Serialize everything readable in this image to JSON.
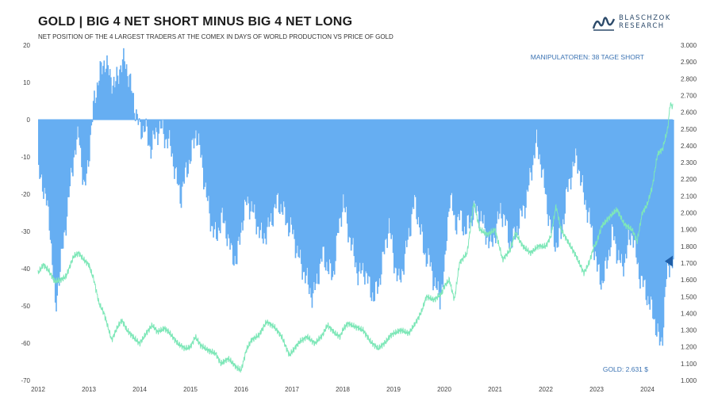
{
  "header": {
    "title": "GOLD | BIG 4 NET SHORT MINUS BIG 4 NET LONG",
    "subtitle": "NET POSITION OF THE 4 LARGEST TRADERS AT THE COMEX IN DAYS OF WORLD PRODUCTION VS PRICE OF GOLD"
  },
  "logo": {
    "line1": "BLASCHZOK",
    "line2": "RESEARCH",
    "icon": "wave-logo-icon"
  },
  "colors": {
    "bars": "#66aef2",
    "gold_line": "#7ee7b8",
    "annotation": "#3b73b3",
    "marker": "#1f5fa8",
    "axis_text": "#444444"
  },
  "annotations": {
    "manipulators": "MANIPULATOREN: 38 TAGE SHORT",
    "gold_price": "GOLD: 2.631 $"
  },
  "chart_data": {
    "type": "bar",
    "x_ticks": [
      "2012",
      "2013",
      "2014",
      "2015",
      "2016",
      "2017",
      "2018",
      "2019",
      "2020",
      "2021",
      "2022",
      "2023",
      "2024"
    ],
    "xlim": [
      2012.0,
      2024.5
    ],
    "y_left": {
      "lim": [
        -70,
        20
      ],
      "ticks": [
        "20",
        "10",
        "0",
        "-10",
        "-20",
        "-30",
        "-40",
        "-50",
        "-60",
        "-70"
      ]
    },
    "y_right": {
      "lim": [
        1000,
        3000
      ],
      "ticks": [
        "3.000",
        "2.900",
        "2.800",
        "2.700",
        "2.600",
        "2.500",
        "2.400",
        "2.300",
        "2.200",
        "2.100",
        "2.000",
        "1.900",
        "1.800",
        "1.700",
        "1.600",
        "1.500",
        "1.400",
        "1.300",
        "1.200",
        "1.100",
        "1.000"
      ]
    },
    "series": [
      {
        "kind": "bar",
        "axis": "left",
        "points": [
          [
            2012.0,
            -15
          ],
          [
            2012.08,
            -17
          ],
          [
            2012.15,
            -22
          ],
          [
            2012.22,
            -28
          ],
          [
            2012.28,
            -40
          ],
          [
            2012.33,
            -52
          ],
          [
            2012.4,
            -42
          ],
          [
            2012.5,
            -32
          ],
          [
            2012.6,
            -20
          ],
          [
            2012.7,
            -9
          ],
          [
            2012.8,
            -4
          ],
          [
            2012.9,
            -20
          ],
          [
            2013.0,
            -8
          ],
          [
            2013.1,
            6
          ],
          [
            2013.2,
            12
          ],
          [
            2013.3,
            16
          ],
          [
            2013.4,
            12
          ],
          [
            2013.5,
            9
          ],
          [
            2013.6,
            14
          ],
          [
            2013.7,
            16
          ],
          [
            2013.8,
            10
          ],
          [
            2013.9,
            3
          ],
          [
            2014.0,
            -3
          ],
          [
            2014.1,
            -2
          ],
          [
            2014.2,
            -8
          ],
          [
            2014.3,
            -4
          ],
          [
            2014.4,
            -2
          ],
          [
            2014.5,
            -5
          ],
          [
            2014.6,
            -7
          ],
          [
            2014.7,
            -15
          ],
          [
            2014.8,
            -21
          ],
          [
            2014.9,
            -14
          ],
          [
            2015.0,
            -10
          ],
          [
            2015.1,
            -3
          ],
          [
            2015.2,
            -10
          ],
          [
            2015.3,
            -20
          ],
          [
            2015.4,
            -28
          ],
          [
            2015.5,
            -32
          ],
          [
            2015.6,
            -26
          ],
          [
            2015.7,
            -30
          ],
          [
            2015.8,
            -36
          ],
          [
            2015.9,
            -38
          ],
          [
            2016.0,
            -28
          ],
          [
            2016.1,
            -22
          ],
          [
            2016.2,
            -24
          ],
          [
            2016.3,
            -28
          ],
          [
            2016.4,
            -32
          ],
          [
            2016.5,
            -30
          ],
          [
            2016.6,
            -26
          ],
          [
            2016.7,
            -22
          ],
          [
            2016.8,
            -24
          ],
          [
            2016.9,
            -28
          ],
          [
            2017.0,
            -30
          ],
          [
            2017.1,
            -36
          ],
          [
            2017.2,
            -40
          ],
          [
            2017.3,
            -44
          ],
          [
            2017.4,
            -48
          ],
          [
            2017.5,
            -42
          ],
          [
            2017.6,
            -36
          ],
          [
            2017.7,
            -40
          ],
          [
            2017.8,
            -42
          ],
          [
            2017.9,
            -30
          ],
          [
            2018.0,
            -22
          ],
          [
            2018.1,
            -30
          ],
          [
            2018.2,
            -36
          ],
          [
            2018.3,
            -42
          ],
          [
            2018.4,
            -40
          ],
          [
            2018.5,
            -44
          ],
          [
            2018.6,
            -48
          ],
          [
            2018.7,
            -44
          ],
          [
            2018.8,
            -36
          ],
          [
            2018.9,
            -28
          ],
          [
            2019.0,
            -38
          ],
          [
            2019.1,
            -44
          ],
          [
            2019.2,
            -38
          ],
          [
            2019.3,
            -30
          ],
          [
            2019.4,
            -22
          ],
          [
            2019.5,
            -28
          ],
          [
            2019.6,
            -36
          ],
          [
            2019.7,
            -38
          ],
          [
            2019.8,
            -44
          ],
          [
            2019.9,
            -48
          ],
          [
            2020.0,
            -40
          ],
          [
            2020.05,
            -28
          ],
          [
            2020.1,
            -20
          ],
          [
            2020.2,
            -28
          ],
          [
            2020.3,
            -26
          ],
          [
            2020.4,
            -30
          ],
          [
            2020.5,
            -27
          ],
          [
            2020.6,
            -24
          ],
          [
            2020.7,
            -26
          ],
          [
            2020.8,
            -30
          ],
          [
            2020.9,
            -34
          ],
          [
            2021.0,
            -30
          ],
          [
            2021.1,
            -24
          ],
          [
            2021.2,
            -28
          ],
          [
            2021.3,
            -34
          ],
          [
            2021.4,
            -30
          ],
          [
            2021.5,
            -26
          ],
          [
            2021.6,
            -22
          ],
          [
            2021.7,
            -14
          ],
          [
            2021.8,
            -6
          ],
          [
            2021.9,
            -12
          ],
          [
            2022.0,
            -22
          ],
          [
            2022.1,
            -30
          ],
          [
            2022.2,
            -34
          ],
          [
            2022.3,
            -30
          ],
          [
            2022.4,
            -20
          ],
          [
            2022.5,
            -14
          ],
          [
            2022.6,
            -10
          ],
          [
            2022.7,
            -18
          ],
          [
            2022.8,
            -24
          ],
          [
            2022.9,
            -30
          ],
          [
            2023.0,
            -40
          ],
          [
            2023.1,
            -44
          ],
          [
            2023.2,
            -38
          ],
          [
            2023.3,
            -30
          ],
          [
            2023.4,
            -36
          ],
          [
            2023.5,
            -40
          ],
          [
            2023.6,
            -34
          ],
          [
            2023.7,
            -30
          ],
          [
            2023.8,
            -40
          ],
          [
            2023.9,
            -44
          ],
          [
            2024.0,
            -48
          ],
          [
            2024.1,
            -52
          ],
          [
            2024.2,
            -58
          ],
          [
            2024.25,
            -61
          ],
          [
            2024.3,
            -56
          ],
          [
            2024.35,
            -44
          ],
          [
            2024.4,
            -40
          ],
          [
            2024.45,
            -38
          ],
          [
            2024.5,
            -38
          ]
        ]
      },
      {
        "kind": "line",
        "axis": "right",
        "points": [
          [
            2012.0,
            1640
          ],
          [
            2012.1,
            1690
          ],
          [
            2012.2,
            1660
          ],
          [
            2012.33,
            1590
          ],
          [
            2012.45,
            1600
          ],
          [
            2012.55,
            1620
          ],
          [
            2012.7,
            1740
          ],
          [
            2012.8,
            1760
          ],
          [
            2012.9,
            1720
          ],
          [
            2013.0,
            1690
          ],
          [
            2013.1,
            1600
          ],
          [
            2013.2,
            1460
          ],
          [
            2013.3,
            1400
          ],
          [
            2013.45,
            1240
          ],
          [
            2013.55,
            1310
          ],
          [
            2013.65,
            1360
          ],
          [
            2013.75,
            1300
          ],
          [
            2013.9,
            1250
          ],
          [
            2014.0,
            1220
          ],
          [
            2014.15,
            1290
          ],
          [
            2014.25,
            1330
          ],
          [
            2014.35,
            1290
          ],
          [
            2014.5,
            1310
          ],
          [
            2014.6,
            1280
          ],
          [
            2014.75,
            1220
          ],
          [
            2014.9,
            1190
          ],
          [
            2015.0,
            1200
          ],
          [
            2015.1,
            1260
          ],
          [
            2015.2,
            1210
          ],
          [
            2015.35,
            1180
          ],
          [
            2015.5,
            1160
          ],
          [
            2015.6,
            1100
          ],
          [
            2015.75,
            1130
          ],
          [
            2015.9,
            1080
          ],
          [
            2016.0,
            1060
          ],
          [
            2016.1,
            1180
          ],
          [
            2016.2,
            1240
          ],
          [
            2016.35,
            1270
          ],
          [
            2016.5,
            1350
          ],
          [
            2016.65,
            1320
          ],
          [
            2016.8,
            1260
          ],
          [
            2016.95,
            1150
          ],
          [
            2017.0,
            1170
          ],
          [
            2017.15,
            1230
          ],
          [
            2017.3,
            1260
          ],
          [
            2017.45,
            1220
          ],
          [
            2017.6,
            1270
          ],
          [
            2017.7,
            1330
          ],
          [
            2017.85,
            1280
          ],
          [
            2017.95,
            1260
          ],
          [
            2018.0,
            1300
          ],
          [
            2018.1,
            1340
          ],
          [
            2018.25,
            1320
          ],
          [
            2018.4,
            1300
          ],
          [
            2018.55,
            1230
          ],
          [
            2018.7,
            1190
          ],
          [
            2018.85,
            1230
          ],
          [
            2018.95,
            1270
          ],
          [
            2019.0,
            1280
          ],
          [
            2019.15,
            1300
          ],
          [
            2019.3,
            1280
          ],
          [
            2019.45,
            1350
          ],
          [
            2019.55,
            1410
          ],
          [
            2019.65,
            1500
          ],
          [
            2019.8,
            1480
          ],
          [
            2019.95,
            1520
          ],
          [
            2020.0,
            1560
          ],
          [
            2020.1,
            1600
          ],
          [
            2020.2,
            1480
          ],
          [
            2020.3,
            1700
          ],
          [
            2020.45,
            1760
          ],
          [
            2020.58,
            2060
          ],
          [
            2020.7,
            1900
          ],
          [
            2020.85,
            1870
          ],
          [
            2021.0,
            1900
          ],
          [
            2021.15,
            1720
          ],
          [
            2021.3,
            1780
          ],
          [
            2021.4,
            1880
          ],
          [
            2021.55,
            1800
          ],
          [
            2021.7,
            1760
          ],
          [
            2021.85,
            1800
          ],
          [
            2022.0,
            1800
          ],
          [
            2022.1,
            1860
          ],
          [
            2022.2,
            2040
          ],
          [
            2022.3,
            1900
          ],
          [
            2022.45,
            1820
          ],
          [
            2022.6,
            1740
          ],
          [
            2022.75,
            1640
          ],
          [
            2022.85,
            1700
          ],
          [
            2022.95,
            1800
          ],
          [
            2023.0,
            1820
          ],
          [
            2023.1,
            1920
          ],
          [
            2023.3,
            1990
          ],
          [
            2023.4,
            2020
          ],
          [
            2023.55,
            1930
          ],
          [
            2023.7,
            1900
          ],
          [
            2023.8,
            1830
          ],
          [
            2023.9,
            2000
          ],
          [
            2024.0,
            2050
          ],
          [
            2024.1,
            2160
          ],
          [
            2024.2,
            2350
          ],
          [
            2024.3,
            2380
          ],
          [
            2024.4,
            2500
          ],
          [
            2024.45,
            2650
          ],
          [
            2024.5,
            2631
          ]
        ]
      }
    ]
  }
}
